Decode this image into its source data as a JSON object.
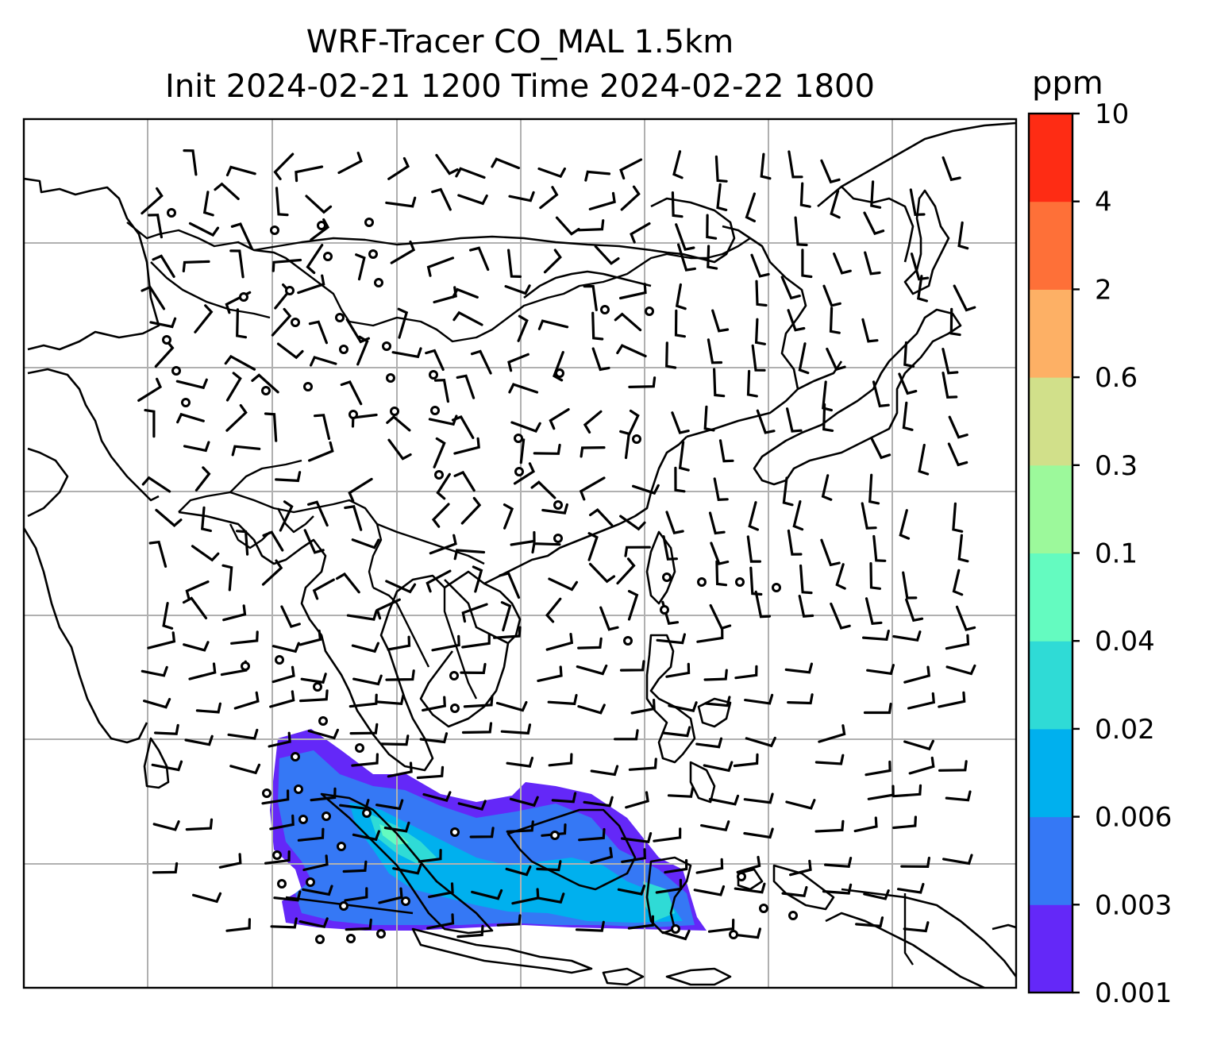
{
  "title": {
    "line1": "WRF-Tracer CO_MAL 1.5km",
    "line2": "Init 2024-02-21 1200 Time 2024-02-22 1800"
  },
  "colorbar": {
    "unit": "ppm",
    "levels": [
      {
        "label": "0.001",
        "color": "#6428f8"
      },
      {
        "label": "0.003",
        "color": "#3578f5"
      },
      {
        "label": "0.006",
        "color": "#00b0ee"
      },
      {
        "label": "0.02",
        "color": "#2fdbd6"
      },
      {
        "label": "0.04",
        "color": "#64fbc0"
      },
      {
        "label": "0.1",
        "color": "#9cf99b"
      },
      {
        "label": "0.3",
        "color": "#d1e08a"
      },
      {
        "label": "0.6",
        "color": "#fdb065"
      },
      {
        "label": "2",
        "color": "#fe7038"
      },
      {
        "label": "4",
        "color": "#fe2c14"
      },
      {
        "label": "10",
        "color": ""
      }
    ]
  },
  "map": {
    "gridlines": true,
    "grid_columns": 8,
    "grid_rows": 7,
    "overlays": [
      "coastlines",
      "country-borders",
      "wind-barbs",
      "calm-wind-circles"
    ],
    "tracer_plume_colors": [
      "#6428f8",
      "#3578f5",
      "#00b0ee",
      "#2fdbd6"
    ]
  }
}
